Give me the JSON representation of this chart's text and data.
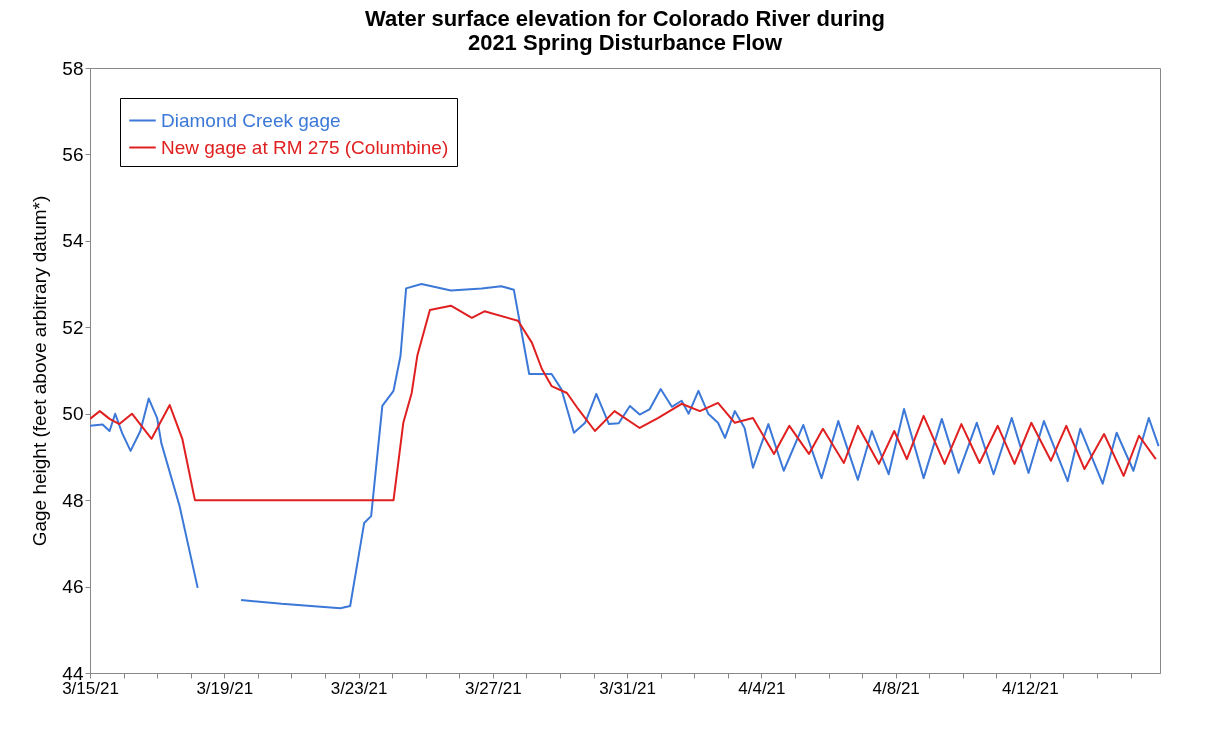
{
  "chart_data": {
    "type": "line",
    "title": "Water surface elevation for Colorado River during 2021 Spring Disturbance Flow",
    "ylabel": "Gage height (feet above arbitrary datum*)",
    "xlim": [
      "2021-03-15T00:00",
      "2021-04-15T21:00"
    ],
    "xticks": [
      {
        "value": "2021-03-15T00:00",
        "label": "3/15/21"
      },
      {
        "value": "2021-03-16T00:00",
        "label": null
      },
      {
        "value": "2021-03-17T00:00",
        "label": null
      },
      {
        "value": "2021-03-18T00:00",
        "label": null
      },
      {
        "value": "2021-03-19T00:00",
        "label": "3/19/21"
      },
      {
        "value": "2021-03-20T00:00",
        "label": null
      },
      {
        "value": "2021-03-21T00:00",
        "label": null
      },
      {
        "value": "2021-03-22T00:00",
        "label": null
      },
      {
        "value": "2021-03-23T00:00",
        "label": "3/23/21"
      },
      {
        "value": "2021-03-24T00:00",
        "label": null
      },
      {
        "value": "2021-03-25T00:00",
        "label": null
      },
      {
        "value": "2021-03-26T00:00",
        "label": null
      },
      {
        "value": "2021-03-27T00:00",
        "label": "3/27/21"
      },
      {
        "value": "2021-03-28T00:00",
        "label": null
      },
      {
        "value": "2021-03-29T00:00",
        "label": null
      },
      {
        "value": "2021-03-30T00:00",
        "label": null
      },
      {
        "value": "2021-03-31T00:00",
        "label": "3/31/21"
      },
      {
        "value": "2021-04-01T00:00",
        "label": null
      },
      {
        "value": "2021-04-02T00:00",
        "label": null
      },
      {
        "value": "2021-04-03T00:00",
        "label": null
      },
      {
        "value": "2021-04-04T00:00",
        "label": "4/4/21"
      },
      {
        "value": "2021-04-05T00:00",
        "label": null
      },
      {
        "value": "2021-04-06T00:00",
        "label": null
      },
      {
        "value": "2021-04-07T00:00",
        "label": null
      },
      {
        "value": "2021-04-08T00:00",
        "label": "4/8/21"
      },
      {
        "value": "2021-04-09T00:00",
        "label": null
      },
      {
        "value": "2021-04-10T00:00",
        "label": null
      },
      {
        "value": "2021-04-11T00:00",
        "label": null
      },
      {
        "value": "2021-04-12T00:00",
        "label": "4/12/21"
      },
      {
        "value": "2021-04-13T00:00",
        "label": null
      },
      {
        "value": "2021-04-14T00:00",
        "label": null
      },
      {
        "value": "2021-04-15T00:00",
        "label": null
      }
    ],
    "ylim": [
      44,
      58
    ],
    "yticks": [
      44,
      46,
      48,
      50,
      52,
      54,
      56,
      58
    ],
    "grid": false,
    "legend": "top left",
    "line_style": "solid",
    "marker": "none",
    "series": [
      {
        "name": "Diamond Creek gage",
        "color": "#3b78d8",
        "x": [
          "2021-03-15T00:00",
          "2021-03-15T09:00",
          "2021-03-15T14:00",
          "2021-03-15T18:00",
          "2021-03-15T23:00",
          "2021-03-16T05:00",
          "2021-03-16T12:00",
          "2021-03-16T18:00",
          "2021-03-17T00:00",
          "2021-03-17T03:00",
          "2021-03-17T16:00",
          "2021-03-18T05:00",
          "2021-03-19T00:00",
          "2021-03-19T12:00",
          "2021-03-20T17:00",
          "2021-03-22T11:00",
          "2021-03-22T18:00",
          "2021-03-23T00:00",
          "2021-03-23T04:00",
          "2021-03-23T09:00",
          "2021-03-23T17:00",
          "2021-03-24T01:00",
          "2021-03-24T06:00",
          "2021-03-24T10:00",
          "2021-03-24T21:00",
          "2021-03-25T18:00",
          "2021-03-26T16:00",
          "2021-03-27T06:00",
          "2021-03-27T15:00",
          "2021-03-28T02:00",
          "2021-03-28T11:00",
          "2021-03-28T18:00",
          "2021-03-29T01:00",
          "2021-03-29T10:00",
          "2021-03-29T18:00",
          "2021-03-30T02:00",
          "2021-03-30T11:00",
          "2021-03-30T18:00",
          "2021-03-31T02:00",
          "2021-03-31T09:00",
          "2021-03-31T16:00",
          "2021-04-01T00:00",
          "2021-04-01T08:00",
          "2021-04-01T15:00",
          "2021-04-01T20:00",
          "2021-04-02T03:00",
          "2021-04-02T10:00",
          "2021-04-02T17:00",
          "2021-04-02T22:00",
          "2021-04-03T05:00",
          "2021-04-03T12:00",
          "2021-04-03T18:00",
          "2021-04-04T05:00",
          "2021-04-04T16:00",
          "2021-04-05T06:00",
          "2021-04-05T19:00",
          "2021-04-06T07:00",
          "2021-04-06T21:00",
          "2021-04-07T07:00",
          "2021-04-07T19:00",
          "2021-04-08T06:00",
          "2021-04-08T20:00",
          "2021-04-09T09:00",
          "2021-04-09T21:00",
          "2021-04-10T10:00",
          "2021-04-10T22:00",
          "2021-04-11T11:00",
          "2021-04-11T23:00",
          "2021-04-12T10:00",
          "2021-04-13T03:00",
          "2021-04-13T12:00",
          "2021-04-14T04:00",
          "2021-04-14T14:00",
          "2021-04-15T02:00",
          "2021-04-15T13:00",
          "2021-04-15T20:00"
        ],
        "values": [
          49.72,
          49.75,
          49.6,
          50.0,
          49.55,
          49.14,
          49.6,
          50.35,
          49.9,
          49.32,
          47.87,
          45.97,
          null,
          45.69,
          45.6,
          45.5,
          45.55,
          46.7,
          47.47,
          47.63,
          50.18,
          50.53,
          51.34,
          52.9,
          53.0,
          52.85,
          52.9,
          52.95,
          52.87,
          50.92,
          50.92,
          50.92,
          50.57,
          49.56,
          49.79,
          50.46,
          49.76,
          49.78,
          50.18,
          49.98,
          50.1,
          50.57,
          50.16,
          50.3,
          50.0,
          50.53,
          50.0,
          49.79,
          49.44,
          50.06,
          49.67,
          48.75,
          49.76,
          48.68,
          49.74,
          48.51,
          49.83,
          48.47,
          49.6,
          48.6,
          50.11,
          48.51,
          49.88,
          48.63,
          49.79,
          48.6,
          49.9,
          48.63,
          49.83,
          48.44,
          49.65,
          48.38,
          49.56,
          48.68,
          49.9,
          49.25
        ]
      },
      {
        "name": "New gage at RM 275 (Columbine)",
        "color": "#e02020",
        "x": [
          "2021-03-15T00:00",
          "2021-03-15T07:00",
          "2021-03-15T14:00",
          "2021-03-15T21:00",
          "2021-03-16T06:00",
          "2021-03-16T20:00",
          "2021-03-17T09:00",
          "2021-03-17T18:00",
          "2021-03-18T03:00",
          "2021-03-24T01:00",
          "2021-03-24T05:00",
          "2021-03-24T08:00",
          "2021-03-24T14:00",
          "2021-03-24T18:00",
          "2021-03-25T03:00",
          "2021-03-25T18:00",
          "2021-03-26T09:00",
          "2021-03-26T18:00",
          "2021-03-27T18:00",
          "2021-03-28T04:00",
          "2021-03-28T11:00",
          "2021-03-28T18:00",
          "2021-03-29T05:00",
          "2021-03-29T13:00",
          "2021-03-30T01:00",
          "2021-03-30T15:00",
          "2021-03-31T09:00",
          "2021-03-31T22:00",
          "2021-04-01T15:00",
          "2021-04-02T04:00",
          "2021-04-02T17:00",
          "2021-04-03T05:00",
          "2021-04-03T18:00",
          "2021-04-04T09:00",
          "2021-04-04T20:00",
          "2021-04-05T10:00",
          "2021-04-05T20:00",
          "2021-04-06T11:00",
          "2021-04-06T21:00",
          "2021-04-07T12:00",
          "2021-04-07T23:00",
          "2021-04-08T08:00",
          "2021-04-08T20:00",
          "2021-04-09T11:00",
          "2021-04-09T23:00",
          "2021-04-10T12:00",
          "2021-04-11T01:00",
          "2021-04-11T13:00",
          "2021-04-12T01:00",
          "2021-04-12T15:00",
          "2021-04-13T02:00",
          "2021-04-13T15:00",
          "2021-04-14T05:00",
          "2021-04-14T19:00",
          "2021-04-15T06:00",
          "2021-04-15T18:00"
        ],
        "values": [
          49.88,
          50.06,
          49.88,
          49.76,
          50.0,
          49.42,
          50.2,
          49.42,
          48.0,
          48.0,
          49.02,
          49.79,
          50.48,
          51.34,
          52.4,
          52.5,
          52.22,
          52.37,
          52.15,
          51.64,
          51.04,
          50.64,
          50.48,
          50.11,
          49.6,
          50.06,
          49.67,
          49.9,
          50.23,
          50.06,
          50.25,
          49.79,
          49.9,
          49.07,
          49.72,
          49.07,
          49.65,
          48.86,
          49.72,
          48.84,
          49.6,
          48.95,
          49.95,
          48.84,
          49.76,
          48.86,
          49.72,
          48.84,
          49.79,
          48.91,
          49.72,
          48.72,
          49.53,
          48.56,
          49.49,
          48.95
        ]
      }
    ]
  }
}
